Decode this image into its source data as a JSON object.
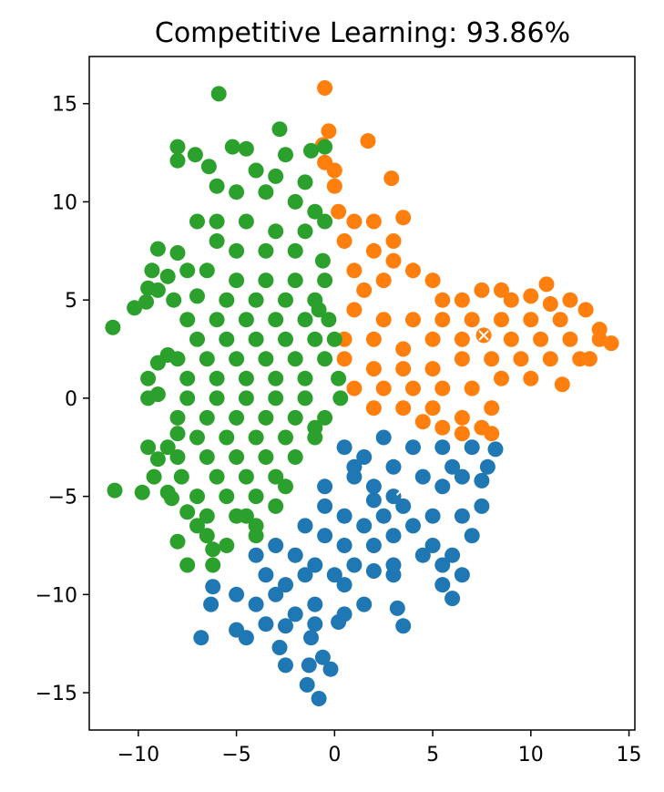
{
  "chart_data": {
    "type": "scatter",
    "title": "Competitive Learning: 93.86%",
    "xlabel": "",
    "ylabel": "",
    "xlim": [
      -12.5,
      15.3
    ],
    "ylim": [
      -16.9,
      17.4
    ],
    "xticks": [
      -10,
      -5,
      0,
      5,
      10,
      15
    ],
    "yticks": [
      -15,
      -10,
      -5,
      0,
      5,
      10,
      15
    ],
    "xtick_labels": [
      "−10",
      "−5",
      "0",
      "5",
      "10",
      "15"
    ],
    "ytick_labels": [
      "−15",
      "−10",
      "−5",
      "0",
      "5",
      "10",
      "15"
    ],
    "grid": false,
    "legend": "none",
    "series": [
      {
        "color": "#1f77b4",
        "points": [
          [
            0.5,
            -2.5
          ],
          [
            1.5,
            -3.0
          ],
          [
            2.5,
            -2.0
          ],
          [
            4.0,
            -2.5
          ],
          [
            5.5,
            -2.5
          ],
          [
            7.0,
            -2.5
          ],
          [
            8.2,
            -2.6
          ],
          [
            1.0,
            -4.0
          ],
          [
            2.0,
            -4.5
          ],
          [
            3.0,
            -5.0
          ],
          [
            4.5,
            -4.0
          ],
          [
            5.5,
            -4.5
          ],
          [
            6.5,
            -4.0
          ],
          [
            7.5,
            -4.2
          ],
          [
            -0.5,
            -5.5
          ],
          [
            0.5,
            -6.0
          ],
          [
            1.5,
            -6.5
          ],
          [
            2.5,
            -6.0
          ],
          [
            3.5,
            -5.5
          ],
          [
            5.0,
            -6.0
          ],
          [
            6.5,
            -6.0
          ],
          [
            7.5,
            -5.5
          ],
          [
            -1.5,
            -6.5
          ],
          [
            -0.5,
            -7.0
          ],
          [
            0.5,
            -7.5
          ],
          [
            2.0,
            -7.5
          ],
          [
            3.0,
            -7.0
          ],
          [
            5.0,
            -7.5
          ],
          [
            6.0,
            -8.0
          ],
          [
            7.0,
            -7.0
          ],
          [
            -3.0,
            -7.5
          ],
          [
            -2.0,
            -8.0
          ],
          [
            -1.0,
            -8.5
          ],
          [
            0.0,
            -9.0
          ],
          [
            1.0,
            -8.5
          ],
          [
            2.0,
            -8.8
          ],
          [
            3.0,
            -8.5
          ],
          [
            5.5,
            -8.5
          ],
          [
            6.5,
            -9.0
          ],
          [
            -4.0,
            -8.0
          ],
          [
            -3.5,
            -9.0
          ],
          [
            -2.5,
            -9.5
          ],
          [
            -1.5,
            -9.0
          ],
          [
            0.5,
            -9.5
          ],
          [
            3.0,
            -9.0
          ],
          [
            5.5,
            -9.5
          ],
          [
            6.0,
            -10.2
          ],
          [
            -6.2,
            -9.6
          ],
          [
            -5.0,
            -10.0
          ],
          [
            -4.0,
            -10.5
          ],
          [
            -3.0,
            -10.0
          ],
          [
            -2.0,
            -11.0
          ],
          [
            -1.0,
            -10.5
          ],
          [
            0.5,
            -11.0
          ],
          [
            1.5,
            -10.5
          ],
          [
            3.2,
            -10.7
          ],
          [
            -6.3,
            -10.5
          ],
          [
            -5.0,
            -11.8
          ],
          [
            -4.5,
            -12.2
          ],
          [
            -3.5,
            -11.5
          ],
          [
            -2.5,
            -11.6
          ],
          [
            -1.0,
            -11.5
          ],
          [
            0.2,
            -11.4
          ],
          [
            3.5,
            -11.6
          ],
          [
            -6.8,
            -12.2
          ],
          [
            -2.8,
            -12.7
          ],
          [
            -1.2,
            -12.2
          ],
          [
            -2.5,
            -13.6
          ],
          [
            -0.6,
            -13.2
          ],
          [
            -1.3,
            -13.6
          ],
          [
            -0.2,
            -13.8
          ],
          [
            -1.4,
            -14.6
          ],
          [
            -0.8,
            -15.3
          ],
          [
            2.0,
            -5.2
          ],
          [
            4.0,
            -6.5
          ],
          [
            1.0,
            -3.5
          ],
          [
            3.0,
            -3.5
          ],
          [
            6.0,
            -3.5
          ],
          [
            4.5,
            -8.0
          ],
          [
            -0.5,
            -4.5
          ],
          [
            7.8,
            -3.5
          ]
        ]
      },
      {
        "color": "#ff7f0e",
        "points": [
          [
            -0.5,
            15.8
          ],
          [
            -0.3,
            13.6
          ],
          [
            1.7,
            13.1
          ],
          [
            -0.6,
            12.9
          ],
          [
            2.9,
            11.2
          ],
          [
            -0.5,
            12.0
          ],
          [
            0.0,
            11.6
          ],
          [
            0.0,
            10.8
          ],
          [
            0.2,
            9.5
          ],
          [
            1.0,
            9.0
          ],
          [
            2.0,
            9.0
          ],
          [
            3.5,
            9.2
          ],
          [
            0.5,
            8.0
          ],
          [
            2.0,
            7.5
          ],
          [
            3.0,
            7.0
          ],
          [
            1.0,
            6.5
          ],
          [
            2.5,
            6.0
          ],
          [
            4.0,
            6.5
          ],
          [
            5.0,
            6.0
          ],
          [
            6.5,
            5.0
          ],
          [
            7.5,
            5.5
          ],
          [
            9.0,
            5.0
          ],
          [
            10.0,
            5.2
          ],
          [
            10.8,
            5.8
          ],
          [
            12.0,
            5.0
          ],
          [
            1.0,
            4.5
          ],
          [
            2.5,
            4.0
          ],
          [
            4.0,
            4.0
          ],
          [
            5.5,
            4.0
          ],
          [
            7.0,
            4.0
          ],
          [
            8.5,
            4.0
          ],
          [
            10.0,
            4.0
          ],
          [
            11.5,
            4.0
          ],
          [
            12.8,
            4.5
          ],
          [
            13.5,
            3.5
          ],
          [
            0.5,
            3.0
          ],
          [
            2.0,
            3.0
          ],
          [
            3.5,
            2.5
          ],
          [
            5.0,
            3.0
          ],
          [
            6.5,
            3.0
          ],
          [
            7.6,
            3.2
          ],
          [
            9.0,
            3.0
          ],
          [
            10.5,
            3.0
          ],
          [
            12.0,
            3.0
          ],
          [
            13.5,
            3.0
          ],
          [
            14.1,
            2.8
          ],
          [
            0.5,
            2.0
          ],
          [
            2.0,
            1.5
          ],
          [
            3.5,
            1.5
          ],
          [
            5.0,
            1.5
          ],
          [
            6.5,
            2.0
          ],
          [
            8.0,
            2.0
          ],
          [
            9.5,
            2.0
          ],
          [
            11.0,
            2.0
          ],
          [
            12.5,
            2.0
          ],
          [
            1.0,
            0.5
          ],
          [
            2.5,
            0.5
          ],
          [
            4.0,
            0.5
          ],
          [
            5.5,
            0.5
          ],
          [
            7.0,
            0.5
          ],
          [
            8.5,
            1.0
          ],
          [
            10.0,
            1.0
          ],
          [
            11.6,
            0.7
          ],
          [
            2.0,
            -0.5
          ],
          [
            3.5,
            -0.5
          ],
          [
            5.0,
            -0.5
          ],
          [
            6.5,
            -1.0
          ],
          [
            8.0,
            -0.5
          ],
          [
            4.5,
            -1.2
          ],
          [
            5.5,
            -1.5
          ],
          [
            6.5,
            -1.8
          ],
          [
            7.5,
            -1.5
          ],
          [
            8.0,
            -1.8
          ],
          [
            1.5,
            5.5
          ],
          [
            3.0,
            8.0
          ],
          [
            5.5,
            5.0
          ],
          [
            8.5,
            5.5
          ],
          [
            11.0,
            4.8
          ],
          [
            13.0,
            2.0
          ]
        ]
      },
      {
        "color": "#2ca02c",
        "points": [
          [
            -5.9,
            15.5
          ],
          [
            -2.8,
            13.7
          ],
          [
            -8.0,
            12.8
          ],
          [
            -5.2,
            12.8
          ],
          [
            -4.5,
            12.7
          ],
          [
            -2.5,
            12.4
          ],
          [
            -1.2,
            12.6
          ],
          [
            -0.5,
            12.8
          ],
          [
            -8.0,
            12.1
          ],
          [
            -7.1,
            12.4
          ],
          [
            -6.4,
            11.8
          ],
          [
            -4.0,
            11.6
          ],
          [
            -3.0,
            11.3
          ],
          [
            -1.5,
            11.0
          ],
          [
            -6.0,
            10.8
          ],
          [
            -5.0,
            10.5
          ],
          [
            -3.5,
            10.5
          ],
          [
            -2.0,
            10.0
          ],
          [
            -1.0,
            9.5
          ],
          [
            -6.0,
            9.0
          ],
          [
            -7.0,
            9.0
          ],
          [
            -4.5,
            9.0
          ],
          [
            -3.0,
            8.5
          ],
          [
            -1.5,
            8.5
          ],
          [
            -6.0,
            8.0
          ],
          [
            -8.0,
            7.4
          ],
          [
            -9.0,
            7.6
          ],
          [
            -5.0,
            7.5
          ],
          [
            -3.5,
            7.5
          ],
          [
            -2.0,
            7.5
          ],
          [
            -0.6,
            7.0
          ],
          [
            -9.3,
            6.5
          ],
          [
            -8.5,
            6.2
          ],
          [
            -7.5,
            6.5
          ],
          [
            -6.5,
            6.5
          ],
          [
            -5.0,
            6.0
          ],
          [
            -3.5,
            6.0
          ],
          [
            -2.0,
            6.0
          ],
          [
            -0.5,
            6.0
          ],
          [
            -9.5,
            5.6
          ],
          [
            -9.0,
            5.5
          ],
          [
            -8.2,
            5.0
          ],
          [
            -7.0,
            5.2
          ],
          [
            -5.5,
            5.0
          ],
          [
            -4.0,
            5.0
          ],
          [
            -2.5,
            5.0
          ],
          [
            -1.0,
            5.0
          ],
          [
            -10.2,
            4.6
          ],
          [
            -9.6,
            4.9
          ],
          [
            -7.5,
            4.0
          ],
          [
            -6.0,
            4.0
          ],
          [
            -4.5,
            4.0
          ],
          [
            -3.0,
            4.0
          ],
          [
            -1.5,
            4.0
          ],
          [
            -0.3,
            4.0
          ],
          [
            -11.3,
            3.6
          ],
          [
            -7.0,
            3.0
          ],
          [
            -5.5,
            3.0
          ],
          [
            -4.0,
            3.0
          ],
          [
            -2.5,
            3.0
          ],
          [
            -1.0,
            3.0
          ],
          [
            0.0,
            3.0
          ],
          [
            -8.5,
            2.2
          ],
          [
            -8.0,
            2.0
          ],
          [
            -6.5,
            2.0
          ],
          [
            -5.0,
            2.0
          ],
          [
            -3.5,
            2.0
          ],
          [
            -2.0,
            2.0
          ],
          [
            -0.5,
            2.0
          ],
          [
            -9.0,
            1.8
          ],
          [
            -9.5,
            1.0
          ],
          [
            -7.5,
            1.0
          ],
          [
            -6.0,
            1.0
          ],
          [
            -4.5,
            1.0
          ],
          [
            -3.0,
            1.0
          ],
          [
            -1.5,
            1.0
          ],
          [
            0.2,
            1.0
          ],
          [
            -9.5,
            0.0
          ],
          [
            -9.0,
            0.2
          ],
          [
            -7.5,
            0.0
          ],
          [
            -6.0,
            0.0
          ],
          [
            -4.5,
            0.0
          ],
          [
            -3.0,
            0.0
          ],
          [
            -1.5,
            0.0
          ],
          [
            0.3,
            0.0
          ],
          [
            -8.0,
            -1.0
          ],
          [
            -6.5,
            -1.0
          ],
          [
            -5.0,
            -1.0
          ],
          [
            -3.5,
            -1.0
          ],
          [
            -2.0,
            -1.0
          ],
          [
            -0.5,
            -1.0
          ],
          [
            -8.0,
            -1.8
          ],
          [
            -8.5,
            -2.5
          ],
          [
            -9.5,
            -2.5
          ],
          [
            -7.0,
            -2.0
          ],
          [
            -5.5,
            -2.0
          ],
          [
            -4.0,
            -2.0
          ],
          [
            -2.5,
            -2.0
          ],
          [
            -1.0,
            -2.0
          ],
          [
            -8.0,
            -3.0
          ],
          [
            -9.0,
            -3.1
          ],
          [
            -6.5,
            -3.0
          ],
          [
            -5.0,
            -3.0
          ],
          [
            -3.5,
            -3.0
          ],
          [
            -2.0,
            -3.0
          ],
          [
            -9.2,
            -4.0
          ],
          [
            -7.8,
            -4.0
          ],
          [
            -6.0,
            -4.0
          ],
          [
            -4.5,
            -4.0
          ],
          [
            -3.0,
            -4.0
          ],
          [
            -11.2,
            -4.7
          ],
          [
            -9.8,
            -4.8
          ],
          [
            -8.5,
            -4.8
          ],
          [
            -8.3,
            -5.1
          ],
          [
            -7.0,
            -5.0
          ],
          [
            -5.5,
            -5.0
          ],
          [
            -4.0,
            -5.0
          ],
          [
            -3.0,
            -5.5
          ],
          [
            -7.5,
            -5.8
          ],
          [
            -6.5,
            -6.0
          ],
          [
            -5.0,
            -6.0
          ],
          [
            -4.0,
            -6.5
          ],
          [
            -7.0,
            -6.5
          ],
          [
            -8.0,
            -7.3
          ],
          [
            -6.5,
            -7.0
          ],
          [
            -5.5,
            -7.5
          ],
          [
            -6.2,
            -7.7
          ],
          [
            -7.5,
            -8.5
          ],
          [
            -6.2,
            -8.5
          ],
          [
            -4.0,
            -7.0
          ],
          [
            -4.5,
            -6.0
          ],
          [
            -2.5,
            -4.5
          ],
          [
            -1.0,
            -1.5
          ],
          [
            -0.8,
            4.5
          ],
          [
            -0.5,
            9.0
          ]
        ]
      }
    ],
    "centroids": {
      "color": "#ffffff",
      "marker": "x",
      "points": [
        [
          -3.8,
          1.1
        ],
        [
          7.6,
          3.2
        ],
        [
          3.4,
          -4.7
        ]
      ]
    }
  }
}
